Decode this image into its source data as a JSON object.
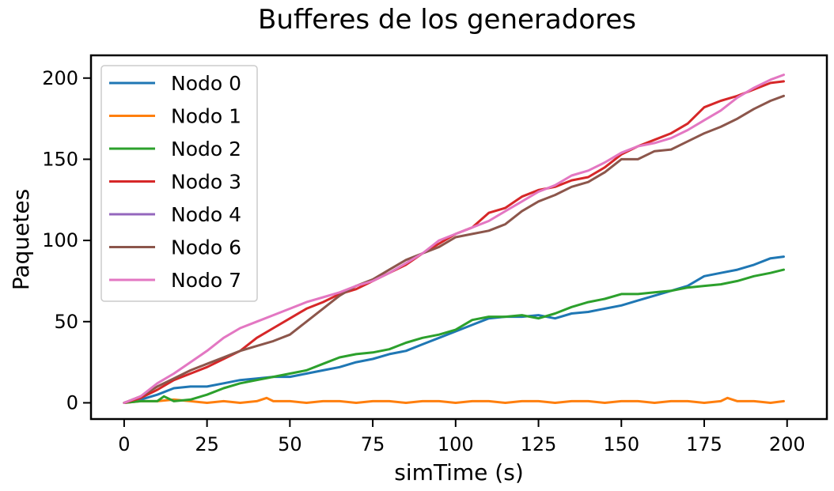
{
  "chart_data": {
    "type": "line",
    "title": "Bufferes de los generadores",
    "xlabel": "simTime (s)",
    "ylabel": "Paquetes",
    "xlim": [
      -10,
      212
    ],
    "ylim": [
      -10,
      214
    ],
    "xticks": [
      0,
      25,
      50,
      75,
      100,
      125,
      150,
      175,
      200
    ],
    "yticks": [
      0,
      50,
      100,
      150,
      200
    ],
    "grid": false,
    "legend_position": "top-left",
    "series": [
      {
        "name": "Nodo 0",
        "color": "#1f77b4",
        "x": [
          0,
          5,
          10,
          15,
          20,
          25,
          30,
          35,
          40,
          45,
          50,
          55,
          60,
          65,
          70,
          75,
          80,
          85,
          90,
          95,
          100,
          105,
          110,
          115,
          120,
          125,
          130,
          135,
          140,
          145,
          150,
          155,
          160,
          165,
          170,
          175,
          180,
          185,
          190,
          195,
          199
        ],
        "y": [
          0,
          2,
          5,
          9,
          10,
          10,
          12,
          14,
          15,
          16,
          16,
          18,
          20,
          22,
          25,
          27,
          30,
          32,
          36,
          40,
          44,
          48,
          52,
          53,
          53,
          54,
          52,
          55,
          56,
          58,
          60,
          63,
          66,
          69,
          72,
          78,
          80,
          82,
          85,
          89,
          90
        ]
      },
      {
        "name": "Nodo 1",
        "color": "#ff7f0e",
        "x": [
          0,
          5,
          10,
          15,
          20,
          25,
          30,
          35,
          40,
          43,
          45,
          50,
          55,
          60,
          65,
          70,
          75,
          80,
          85,
          90,
          95,
          100,
          105,
          110,
          115,
          120,
          125,
          130,
          135,
          140,
          145,
          150,
          155,
          160,
          165,
          170,
          175,
          180,
          182,
          185,
          190,
          195,
          199
        ],
        "y": [
          0,
          1,
          1,
          2,
          1,
          0,
          1,
          0,
          1,
          3,
          1,
          1,
          0,
          1,
          1,
          0,
          1,
          1,
          0,
          1,
          1,
          0,
          1,
          1,
          0,
          1,
          1,
          0,
          1,
          1,
          0,
          1,
          1,
          0,
          1,
          1,
          0,
          1,
          3,
          1,
          1,
          0,
          1
        ]
      },
      {
        "name": "Nodo 2",
        "color": "#2ca02c",
        "x": [
          0,
          5,
          10,
          12,
          15,
          20,
          25,
          30,
          35,
          40,
          45,
          50,
          55,
          60,
          65,
          70,
          75,
          80,
          85,
          90,
          95,
          100,
          105,
          110,
          115,
          120,
          125,
          130,
          135,
          140,
          145,
          150,
          155,
          160,
          165,
          170,
          175,
          180,
          185,
          190,
          195,
          199
        ],
        "y": [
          0,
          1,
          1,
          4,
          1,
          2,
          5,
          9,
          12,
          14,
          16,
          18,
          20,
          24,
          28,
          30,
          31,
          33,
          37,
          40,
          42,
          45,
          51,
          53,
          53,
          54,
          52,
          55,
          59,
          62,
          64,
          67,
          67,
          68,
          69,
          71,
          72,
          73,
          75,
          78,
          80,
          82
        ]
      },
      {
        "name": "Nodo 3",
        "color": "#d62728",
        "x": [
          0,
          5,
          10,
          15,
          20,
          25,
          30,
          35,
          40,
          45,
          50,
          55,
          60,
          65,
          70,
          75,
          80,
          85,
          90,
          95,
          100,
          105,
          110,
          115,
          120,
          125,
          130,
          135,
          140,
          145,
          150,
          155,
          160,
          165,
          170,
          175,
          180,
          185,
          190,
          195,
          199
        ],
        "y": [
          0,
          3,
          8,
          14,
          18,
          22,
          27,
          32,
          40,
          46,
          52,
          58,
          62,
          67,
          70,
          75,
          80,
          85,
          92,
          98,
          104,
          108,
          117,
          120,
          127,
          131,
          133,
          137,
          139,
          145,
          153,
          158,
          162,
          166,
          172,
          182,
          186,
          189,
          193,
          197,
          198
        ]
      },
      {
        "name": "Nodo 4",
        "color": "#9467bd",
        "x": [],
        "y": []
      },
      {
        "name": "Nodo 6",
        "color": "#8c564b",
        "x": [
          0,
          5,
          10,
          15,
          20,
          25,
          30,
          35,
          40,
          45,
          50,
          55,
          60,
          65,
          70,
          75,
          80,
          85,
          90,
          95,
          100,
          105,
          110,
          115,
          120,
          125,
          130,
          135,
          140,
          145,
          150,
          155,
          160,
          165,
          170,
          175,
          180,
          185,
          190,
          195,
          199
        ],
        "y": [
          0,
          4,
          10,
          15,
          20,
          24,
          28,
          32,
          35,
          38,
          42,
          50,
          58,
          66,
          72,
          76,
          82,
          88,
          92,
          96,
          102,
          104,
          106,
          110,
          118,
          124,
          128,
          133,
          136,
          142,
          150,
          150,
          155,
          156,
          161,
          166,
          170,
          175,
          181,
          186,
          189
        ]
      },
      {
        "name": "Nodo 7",
        "color": "#e377c2",
        "x": [
          0,
          5,
          10,
          15,
          20,
          25,
          30,
          35,
          40,
          45,
          50,
          55,
          60,
          65,
          70,
          75,
          80,
          85,
          90,
          95,
          100,
          105,
          110,
          115,
          120,
          125,
          130,
          135,
          140,
          145,
          150,
          155,
          160,
          165,
          170,
          175,
          180,
          185,
          190,
          195,
          199
        ],
        "y": [
          0,
          4,
          12,
          18,
          25,
          32,
          40,
          46,
          50,
          54,
          58,
          62,
          65,
          68,
          72,
          75,
          80,
          86,
          92,
          100,
          104,
          108,
          112,
          118,
          124,
          130,
          134,
          140,
          143,
          148,
          154,
          158,
          160,
          163,
          168,
          174,
          180,
          188,
          194,
          199,
          202
        ]
      }
    ]
  }
}
